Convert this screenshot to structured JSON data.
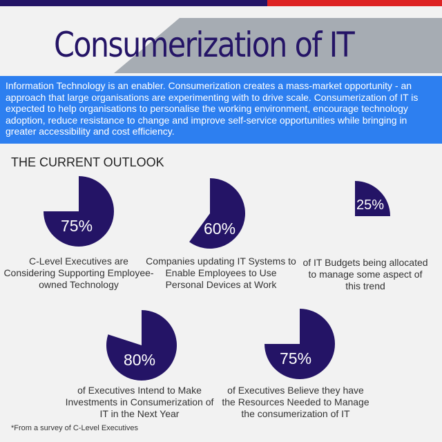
{
  "header": {
    "title": "Consumerization of IT",
    "accent_colors": {
      "top_left": "#241466",
      "top_right": "#dd2222",
      "intro_bg": "#2d7ff0",
      "pie": "#241466"
    }
  },
  "intro": "Information Technology is an enabler. Consumerization creates a mass-market opportunity - an approach that large organisations are experimenting with to drive scale. Consumerization of IT is expected to help organisations to personalise the working environment, encourage technology adoption, reduce resistance to change and improve self-service opportunities while bringing in greater accessibility and cost efficiency.",
  "section_title": "THE CURRENT OUTLOOK",
  "stats": [
    {
      "value": 75,
      "label": "75%",
      "caption": "C-Level Executives are Considering Supporting Employee-owned Technology"
    },
    {
      "value": 60,
      "label": "60%",
      "caption": "Companies updating IT Systems to Enable Employees to Use Personal Devices at Work"
    },
    {
      "value": 25,
      "label": "25%",
      "caption": "of IT Budgets being allocated to manage some aspect of this trend"
    },
    {
      "value": 80,
      "label": "80%",
      "caption": "of Executives Intend to Make Investments in Consumerization of IT in the Next Year"
    },
    {
      "value": 75,
      "label": "75%",
      "caption": "of Executives Believe they have the Resources Needed to Manage the consumerization of IT"
    }
  ],
  "footnote": "*From a survey of C-Level Executives"
}
